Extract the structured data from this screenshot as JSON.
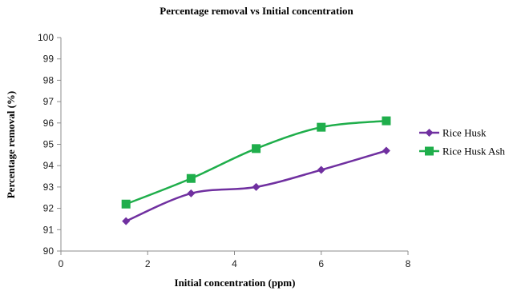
{
  "chart_data": {
    "type": "line",
    "title": "Percentage removal vs Initial concentration",
    "xlabel": "Initial concentration (ppm)",
    "ylabel": "Percentage removal (%)",
    "xlim": [
      0,
      8
    ],
    "ylim": [
      90,
      100
    ],
    "xticks": [
      0,
      2,
      4,
      6,
      8
    ],
    "yticks": [
      90,
      91,
      92,
      93,
      94,
      95,
      96,
      97,
      98,
      99,
      100
    ],
    "grid": false,
    "legend_position": "right",
    "series": [
      {
        "name": "Rice Husk",
        "color": "#7030a0",
        "marker": "diamond",
        "x": [
          1.5,
          3,
          4.5,
          6,
          7.5
        ],
        "y": [
          91.4,
          92.7,
          93.0,
          93.8,
          94.7
        ]
      },
      {
        "name": "Rice Husk Ash",
        "color": "#1fae4b",
        "marker": "square",
        "x": [
          1.5,
          3,
          4.5,
          6,
          7.5
        ],
        "y": [
          92.2,
          93.4,
          94.8,
          95.8,
          96.1
        ]
      }
    ]
  }
}
